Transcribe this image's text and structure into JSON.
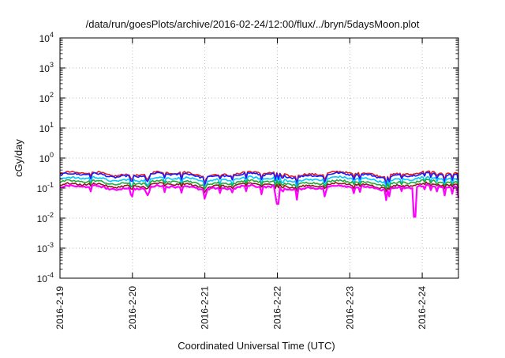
{
  "chart_data": {
    "type": "line",
    "title": "/data/run/goesPlots/archive/2016-02-24/12:00/flux/../bryn/5daysMoon.plot",
    "xlabel": "Coordinated Universal Time (UTC)",
    "ylabel": "cGy/day",
    "x_range": [
      "2016-02-19",
      "2016-02-24T12:00"
    ],
    "x_ticks": [
      "2016-2-19",
      "2016-2-20",
      "2016-2-21",
      "2016-2-22",
      "2016-2-23",
      "2016-2-24"
    ],
    "y_scale": "log",
    "ylim": [
      0.0001,
      10000
    ],
    "y_ticks": [
      {
        "base": "10",
        "exp": "4"
      },
      {
        "base": "10",
        "exp": "3"
      },
      {
        "base": "10",
        "exp": "2"
      },
      {
        "base": "10",
        "exp": "1"
      },
      {
        "base": "10",
        "exp": "0"
      },
      {
        "base": "10",
        "exp": "-1"
      },
      {
        "base": "10",
        "exp": "-2"
      },
      {
        "base": "10",
        "exp": "-3"
      },
      {
        "base": "10",
        "exp": "-4"
      }
    ],
    "grid": true,
    "series": [
      {
        "color": "#e41a1c",
        "level": 0.3,
        "dip_depth": 0.45
      },
      {
        "color": "#1a1aff",
        "level": 0.27,
        "dip_depth": 0.5
      },
      {
        "color": "#00c8ff",
        "level": 0.2,
        "dip_depth": 0.55
      },
      {
        "color": "#1faa3a",
        "level": 0.155,
        "dip_depth": 0.35
      },
      {
        "color": "#8b1a1a",
        "level": 0.125,
        "dip_depth": 0.3
      },
      {
        "color": "#ff00ff",
        "level": 0.105,
        "dip_depth": 0.6
      }
    ],
    "notable_minima": [
      {
        "x": "2016-02-22T00:10",
        "y": 0.03
      },
      {
        "x": "2016-02-23T21:30",
        "y": 0.011
      }
    ]
  }
}
